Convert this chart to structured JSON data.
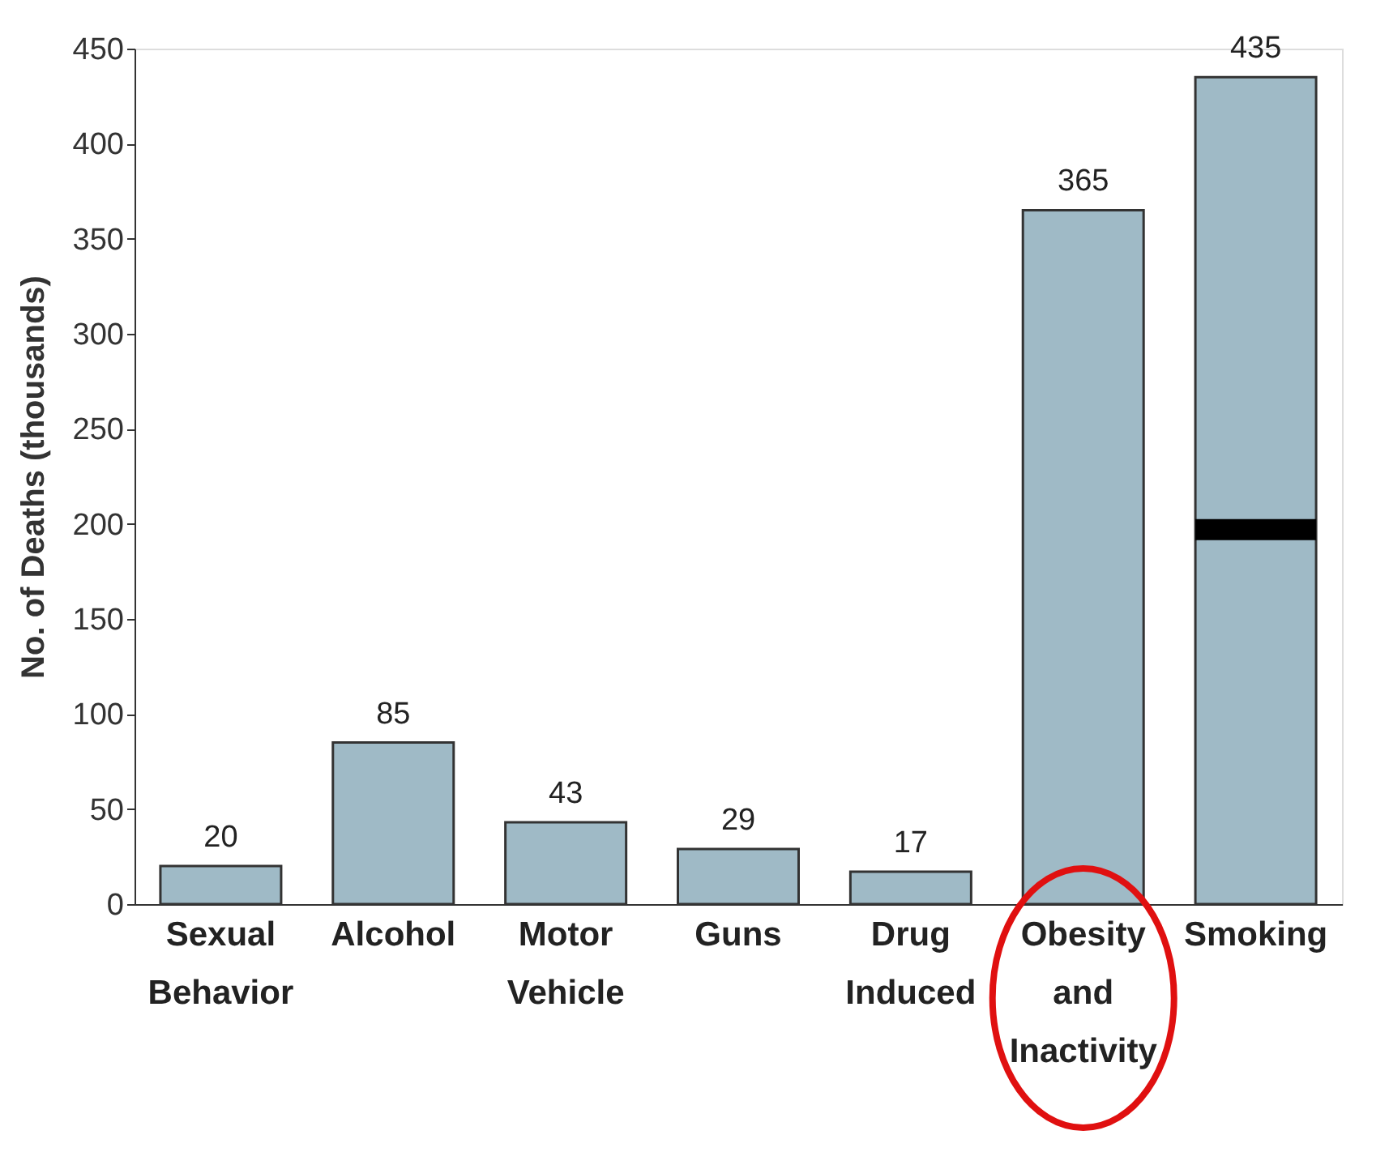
{
  "chart_data": {
    "type": "bar",
    "ylabel": "No. of Deaths (thousands)",
    "categories": [
      "Sexual Behavior",
      "Alcohol",
      "Motor Vehicle",
      "Guns",
      "Drug Induced",
      "Obesity and Inactivity",
      "Smoking"
    ],
    "values": [
      20,
      85,
      43,
      29,
      17,
      365,
      435
    ],
    "color": "#9fbac6",
    "ylim": [
      0,
      450
    ],
    "yticks": [
      0,
      50,
      100,
      150,
      200,
      250,
      300,
      350,
      400,
      450
    ],
    "data_labels": true,
    "grid": false,
    "ref_lines": [
      {
        "axis": "y",
        "value": 197,
        "color": "#000000"
      }
    ]
  }
}
